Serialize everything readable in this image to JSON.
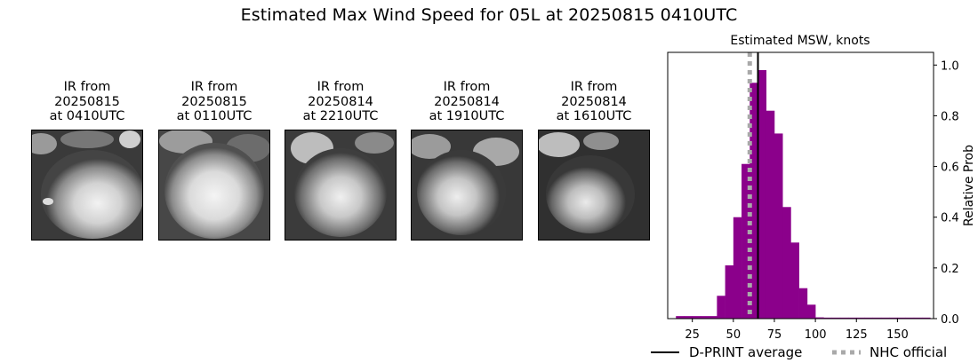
{
  "figure": {
    "title": "Estimated Max Wind Speed for 05L at 20250815 0410UTC"
  },
  "ir_panels": [
    {
      "line1": "IR from",
      "date": "20250815",
      "time": "at 0410UTC"
    },
    {
      "line1": "IR from",
      "date": "20250815",
      "time": "at 0110UTC"
    },
    {
      "line1": "IR from",
      "date": "20250814",
      "time": "at 2210UTC"
    },
    {
      "line1": "IR from",
      "date": "20250814",
      "time": "at 1910UTC"
    },
    {
      "line1": "IR from",
      "date": "20250814",
      "time": "at 1610UTC"
    }
  ],
  "chart_data": {
    "type": "bar",
    "title": "Estimated MSW, knots",
    "xlabel": "",
    "ylabel": "Relative Prob",
    "xlim": [
      10,
      172
    ],
    "ylim": [
      0,
      1.05
    ],
    "xticks": [
      25,
      50,
      75,
      100,
      125,
      150
    ],
    "yticks": [
      0.0,
      0.2,
      0.4,
      0.6,
      0.8,
      1.0
    ],
    "ytick_labels": [
      "0.0",
      "0.2",
      "0.4",
      "0.6",
      "0.8",
      "1.0"
    ],
    "y_axis_side": "right",
    "bar_color": "#8b008b",
    "bin_width": 5,
    "bins": [
      {
        "x": 15,
        "value": 0.01
      },
      {
        "x": 20,
        "value": 0.01
      },
      {
        "x": 25,
        "value": 0.01
      },
      {
        "x": 30,
        "value": 0.01
      },
      {
        "x": 35,
        "value": 0.01
      },
      {
        "x": 40,
        "value": 0.09
      },
      {
        "x": 45,
        "value": 0.21
      },
      {
        "x": 50,
        "value": 0.4
      },
      {
        "x": 55,
        "value": 0.61
      },
      {
        "x": 60,
        "value": 0.93
      },
      {
        "x": 65,
        "value": 0.98
      },
      {
        "x": 70,
        "value": 0.82
      },
      {
        "x": 75,
        "value": 0.73
      },
      {
        "x": 80,
        "value": 0.44
      },
      {
        "x": 85,
        "value": 0.3
      },
      {
        "x": 90,
        "value": 0.12
      },
      {
        "x": 95,
        "value": 0.055
      },
      {
        "x": 100,
        "value": 0.005
      },
      {
        "x": 105,
        "value": 0.004
      },
      {
        "x": 110,
        "value": 0.004
      },
      {
        "x": 115,
        "value": 0.004
      },
      {
        "x": 120,
        "value": 0.004
      },
      {
        "x": 125,
        "value": 0.004
      },
      {
        "x": 130,
        "value": 0.004
      },
      {
        "x": 135,
        "value": 0.004
      },
      {
        "x": 140,
        "value": 0.004
      },
      {
        "x": 145,
        "value": 0.004
      },
      {
        "x": 150,
        "value": 0.004
      },
      {
        "x": 155,
        "value": 0.004
      },
      {
        "x": 160,
        "value": 0.004
      },
      {
        "x": 165,
        "value": 0.004
      }
    ],
    "dprint_average": 65,
    "nhc_official": 60,
    "legend": [
      {
        "label": "D-PRINT average",
        "style": "solid",
        "color": "#000000"
      },
      {
        "label": "NHC official",
        "style": "dotted",
        "color": "#a9a9a9"
      }
    ],
    "legend_placement": "bottom"
  }
}
